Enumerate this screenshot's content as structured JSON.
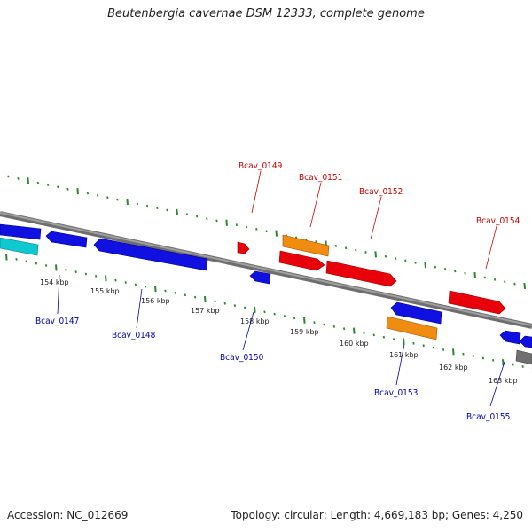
{
  "title": "Beutenbergia cavernae DSM 12333, complete genome",
  "footer": {
    "accession": "Accession: NC_012669",
    "summary": "Topology: circular; Length: 4,669,183 bp; Genes: 4,250"
  },
  "colors": {
    "forward_gene": "#e8000b",
    "reverse_gene": "#1010e0",
    "orange_feature": "#f08c10",
    "cyan_feature": "#10c8d0",
    "grey_feature": "#707070",
    "backbone": "#8a8a8a",
    "tick": "#2a8a2a",
    "forward_label": "#cc0000",
    "reverse_label": "#0000b0"
  },
  "scale_labels": [
    "154 kbp",
    "155 kbp",
    "156 kbp",
    "157 kbp",
    "158 kbp",
    "159 kbp",
    "160 kbp",
    "161 kbp",
    "162 kbp",
    "163 kbp"
  ],
  "gene_labels": {
    "forward": [
      "Bcav_0149",
      "Bcav_0151",
      "Bcav_0152",
      "Bcav_0154"
    ],
    "reverse": [
      "Bcav_0147",
      "Bcav_0148",
      "Bcav_0150",
      "Bcav_0153",
      "Bcav_0155"
    ]
  }
}
